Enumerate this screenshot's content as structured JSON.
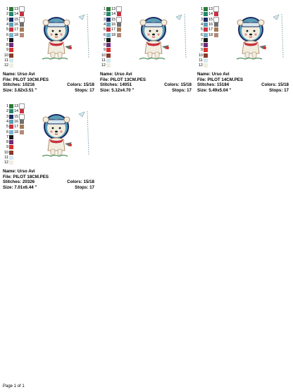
{
  "swatch_rows": [
    {
      "left_num": "1",
      "left_color": "#2a7a3a",
      "right_num": "13",
      "right_color": "#ffffff"
    },
    {
      "left_num": "2",
      "left_color": "#1f8a6a",
      "right_num": "14",
      "right_color": "#c9303f"
    },
    {
      "left_num": "3",
      "left_color": "#1c2a63",
      "right_num": "15",
      "right_color": "#ffffff"
    },
    {
      "left_num": "4",
      "left_color": "#5a9fb8",
      "right_num": "16",
      "right_color": "#6f6f6f"
    },
    {
      "left_num": "5",
      "left_color": "#c9303f",
      "right_num": "17",
      "right_color": "#a57a57"
    },
    {
      "left_num": "6",
      "left_color": "#7ab4cf",
      "right_num": "18",
      "right_color": "#b3897a"
    },
    {
      "left_num": "7",
      "left_color": "#1a1a1a",
      "right_num": "",
      "right_color": ""
    },
    {
      "left_num": "8",
      "left_color": "#6e2a7a",
      "right_num": "",
      "right_color": ""
    },
    {
      "left_num": "9",
      "left_color": "#d8302a",
      "right_num": "",
      "right_color": ""
    },
    {
      "left_num": "10",
      "left_color": "#8a3a2a",
      "right_num": "",
      "right_color": ""
    },
    {
      "left_num": "11",
      "left_color": "#d6e8ef",
      "right_num": "",
      "right_color": ""
    },
    {
      "left_num": "12",
      "left_color": "#f1eee0",
      "right_num": "",
      "right_color": ""
    }
  ],
  "designs": [
    {
      "name_label": "Name:",
      "name": "Urso Avi",
      "file_label": "File:",
      "file": "PILOT 10CM.PES",
      "stitches_label": "Stitches:",
      "stitches": "10216",
      "colors_label": "Colors:",
      "colors": "15/18",
      "size_label": "Size:",
      "size": "3.82x3.51 \"",
      "stops_label": "Stops:",
      "stops": "17"
    },
    {
      "name_label": "Name:",
      "name": "Urso Avi",
      "file_label": "File:",
      "file": "PILOT 13CM.PES",
      "stitches_label": "Stitches:",
      "stitches": "14051",
      "colors_label": "Colors:",
      "colors": "15/18",
      "size_label": "Size:",
      "size": "5.12x4.70 \"",
      "stops_label": "Stops:",
      "stops": "17"
    },
    {
      "name_label": "Name:",
      "name": "Urso Avi",
      "file_label": "File:",
      "file": "PILOT 14CM.PES",
      "stitches_label": "Stitches:",
      "stitches": "15184",
      "colors_label": "Colors:",
      "colors": "15/18",
      "size_label": "Size:",
      "size": "5.49x5.04 \"",
      "stops_label": "Stops:",
      "stops": "17"
    },
    {
      "name_label": "Name:",
      "name": "Urso Avi",
      "file_label": "File:",
      "file": "PILOT 18CM.PES",
      "stitches_label": "Stitches:",
      "stitches": "20326",
      "colors_label": "Colors:",
      "colors": "15/18",
      "size_label": "Size:",
      "size": "7.01x6.44 \"",
      "stops_label": "Stops:",
      "stops": "17"
    }
  ],
  "footer": "Page 1 of 1"
}
